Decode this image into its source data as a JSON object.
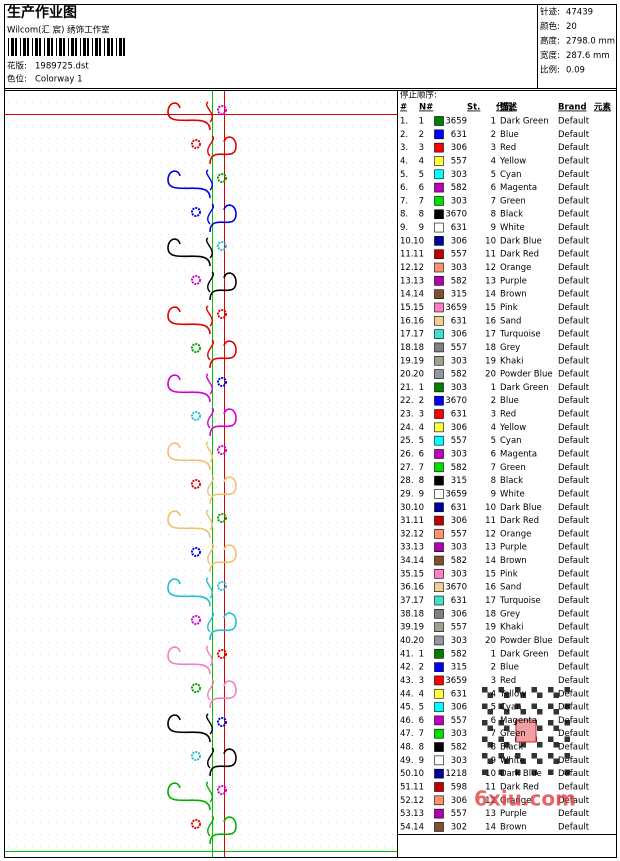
{
  "header": {
    "title": "生产作业图",
    "studio": "Wilcom(汇 宸) 绣饰工作室",
    "design_label": "花版:",
    "design": "1989725.dst",
    "colorway_label": "色位:",
    "colorway": "Colorway 1"
  },
  "info": [
    [
      "针迹:",
      "47439"
    ],
    [
      "颜色:",
      "20"
    ],
    [
      "高度:",
      "2798.0 mm"
    ],
    [
      "宽度:",
      "287.6 mm"
    ],
    [
      "比例:",
      "0.09"
    ]
  ],
  "table": {
    "caption": "停止顺序:",
    "columns": [
      "#",
      "N#",
      "St.",
      "代码",
      "描述",
      "Brand",
      "元素"
    ],
    "swatch_colors": [
      "#008000",
      "#0000ff",
      "#ff0000",
      "#ffff40",
      "#00ffff",
      "#c000c0",
      "#00e000",
      "#000000",
      "#ffffff",
      "#0000a0",
      "#c00000",
      "#ff9070",
      "#b000b0",
      "#805030",
      "#ff80c0",
      "#f0d090",
      "#40e0d0",
      "#808080",
      "#a0a090",
      "#9098a0"
    ],
    "rows": [
      [
        "1.",
        1,
        3659,
        1,
        "Dark Green",
        "Default"
      ],
      [
        "2.",
        2,
        631,
        2,
        "Blue",
        "Default"
      ],
      [
        "3.",
        3,
        306,
        3,
        "Red",
        "Default"
      ],
      [
        "4.",
        4,
        557,
        4,
        "Yellow",
        "Default"
      ],
      [
        "5.",
        5,
        303,
        5,
        "Cyan",
        "Default"
      ],
      [
        "6.",
        6,
        582,
        6,
        "Magenta",
        "Default"
      ],
      [
        "7.",
        7,
        303,
        7,
        "Green",
        "Default"
      ],
      [
        "8.",
        8,
        3670,
        8,
        "Black",
        "Default"
      ],
      [
        "9.",
        9,
        631,
        9,
        "White",
        "Default"
      ],
      [
        "10.",
        10,
        306,
        10,
        "Dark Blue",
        "Default"
      ],
      [
        "11.",
        11,
        557,
        11,
        "Dark Red",
        "Default"
      ],
      [
        "12.",
        12,
        303,
        12,
        "Orange",
        "Default"
      ],
      [
        "13.",
        13,
        582,
        13,
        "Purple",
        "Default"
      ],
      [
        "14.",
        14,
        315,
        14,
        "Brown",
        "Default"
      ],
      [
        "15.",
        15,
        3659,
        15,
        "Pink",
        "Default"
      ],
      [
        "16.",
        16,
        631,
        16,
        "Sand",
        "Default"
      ],
      [
        "17.",
        17,
        306,
        17,
        "Turquoise",
        "Default"
      ],
      [
        "18.",
        18,
        557,
        18,
        "Grey",
        "Default"
      ],
      [
        "19.",
        19,
        303,
        19,
        "Khaki",
        "Default"
      ],
      [
        "20.",
        20,
        582,
        20,
        "Powder Blue",
        "Default"
      ],
      [
        "21.",
        1,
        303,
        1,
        "Dark Green",
        "Default"
      ],
      [
        "22.",
        2,
        3670,
        2,
        "Blue",
        "Default"
      ],
      [
        "23.",
        3,
        631,
        3,
        "Red",
        "Default"
      ],
      [
        "24.",
        4,
        306,
        4,
        "Yellow",
        "Default"
      ],
      [
        "25.",
        5,
        557,
        5,
        "Cyan",
        "Default"
      ],
      [
        "26.",
        6,
        303,
        6,
        "Magenta",
        "Default"
      ],
      [
        "27.",
        7,
        582,
        7,
        "Green",
        "Default"
      ],
      [
        "28.",
        8,
        315,
        8,
        "Black",
        "Default"
      ],
      [
        "29.",
        9,
        3659,
        9,
        "White",
        "Default"
      ],
      [
        "30.",
        10,
        631,
        10,
        "Dark Blue",
        "Default"
      ],
      [
        "31.",
        11,
        306,
        11,
        "Dark Red",
        "Default"
      ],
      [
        "32.",
        12,
        557,
        12,
        "Orange",
        "Default"
      ],
      [
        "33.",
        13,
        303,
        13,
        "Purple",
        "Default"
      ],
      [
        "34.",
        14,
        582,
        14,
        "Brown",
        "Default"
      ],
      [
        "35.",
        15,
        303,
        15,
        "Pink",
        "Default"
      ],
      [
        "36.",
        16,
        3670,
        16,
        "Sand",
        "Default"
      ],
      [
        "37.",
        17,
        631,
        17,
        "Turquoise",
        "Default"
      ],
      [
        "38.",
        18,
        306,
        18,
        "Grey",
        "Default"
      ],
      [
        "39.",
        19,
        557,
        19,
        "Khaki",
        "Default"
      ],
      [
        "40.",
        20,
        303,
        20,
        "Powder Blue",
        "Default"
      ],
      [
        "41.",
        1,
        582,
        1,
        "Dark Green",
        "Default"
      ],
      [
        "42.",
        2,
        315,
        2,
        "Blue",
        "Default"
      ],
      [
        "43.",
        3,
        3659,
        3,
        "Red",
        "Default"
      ],
      [
        "44.",
        4,
        631,
        4,
        "Yellow",
        "Default"
      ],
      [
        "45.",
        5,
        306,
        5,
        "Cyan",
        "Default"
      ],
      [
        "46.",
        6,
        557,
        6,
        "Magenta",
        "Default"
      ],
      [
        "47.",
        7,
        303,
        7,
        "Green",
        "Default"
      ],
      [
        "48.",
        8,
        582,
        8,
        "Black",
        "Default"
      ],
      [
        "49.",
        9,
        303,
        9,
        "White",
        "Default"
      ],
      [
        "50.",
        10,
        1218,
        10,
        "Dark Blue",
        "Default"
      ],
      [
        "51.",
        11,
        598,
        11,
        "Dark Red",
        "Default"
      ],
      [
        "52.",
        12,
        306,
        12,
        "Orange",
        "Default"
      ],
      [
        "53.",
        13,
        557,
        13,
        "Purple",
        "Default"
      ],
      [
        "54.",
        14,
        302,
        14,
        "Brown",
        "Default"
      ]
    ]
  },
  "watermark": "6xiu.com"
}
